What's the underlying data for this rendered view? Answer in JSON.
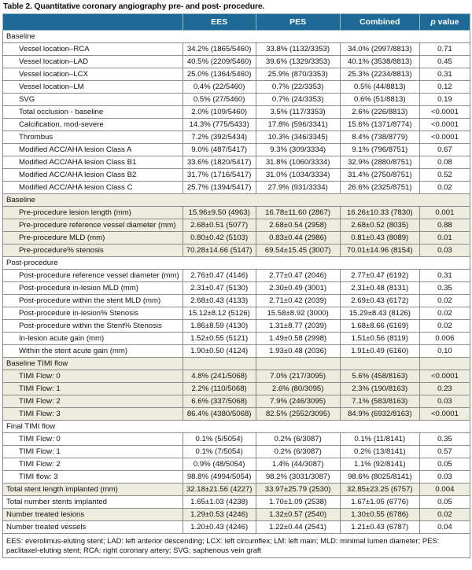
{
  "title": "Table 2. Quantitative coronary angiography pre- and post- procedure.",
  "headers": {
    "label": "",
    "ees": "EES",
    "pes": "PES",
    "combined": "Combined",
    "p_italic": "p",
    "p_rest": " value"
  },
  "sections": [
    {
      "title": "Baseline",
      "shaded": false,
      "full": true,
      "rows": [
        {
          "label": "Vessel location–RCA",
          "ees": "34.2% (1865/5460)",
          "pes": "33.8% (1132/3353)",
          "combined": "34.0% (2997/8813)",
          "p": "0.71"
        },
        {
          "label": "Vessel location–LAD",
          "ees": "40.5% (2209/5460)",
          "pes": "39.6% (1329/3353)",
          "combined": "40.1% (3538/8813)",
          "p": "0.45"
        },
        {
          "label": "Vessel location–LCX",
          "ees": "25.0% (1364/5460)",
          "pes": "25.9% (870/3353)",
          "combined": "25.3% (2234/8813)",
          "p": "0.31"
        },
        {
          "label": "Vessel location–LM",
          "ees": "0.4% (22/5460)",
          "pes": "0.7% (22/3353)",
          "combined": "0.5% (44/8813)",
          "p": "0.12"
        },
        {
          "label": "SVG",
          "ees": "0.5% (27/5460)",
          "pes": "0.7% (24/3353)",
          "combined": "0.6% (51/8813)",
          "p": "0.19"
        },
        {
          "label": "Total occlusion - baseline",
          "ees": "2.0% (109/5460)",
          "pes": "3.5% (117/3353)",
          "combined": "2.6% (226/8813)",
          "p": "<0.0001"
        },
        {
          "label": "Calcification, mod-severe",
          "ees": "14.3% (775/5433)",
          "pes": "17.8% (596/3341)",
          "combined": "15.6% (1371/8774)",
          "p": "<0.0001"
        },
        {
          "label": "Thrombus",
          "ees": "7.2% (392/5434)",
          "pes": "10.3% (346/3345)",
          "combined": "8.4% (738/8779)",
          "p": "<0.0001"
        },
        {
          "label": "Modified ACC/AHA lesion Class A",
          "ees": "9.0% (487/5417)",
          "pes": "9.3% (309/3334)",
          "combined": "9.1% (796/8751)",
          "p": "0.67"
        },
        {
          "label": "Modified ACC/AHA lesion Class B1",
          "ees": "33.6% (1820/5417)",
          "pes": "31.8% (1060/3334)",
          "combined": "32.9% (2880/8751)",
          "p": "0.08"
        },
        {
          "label": "Modified ACC/AHA lesion Class B2",
          "ees": "31.7% (1716/5417)",
          "pes": "31.0% (1034/3334)",
          "combined": "31.4% (2750/8751)",
          "p": "0.52"
        },
        {
          "label": "Modified ACC/AHA lesion Class C",
          "ees": "25.7% (1394/5417)",
          "pes": "27.9% (931/3334)",
          "combined": "26.6% (2325/8751)",
          "p": "0.02"
        }
      ]
    },
    {
      "title": "Baseline",
      "shaded": true,
      "full": true,
      "rows": [
        {
          "label": "Pre-procedure lesion length (mm)",
          "ees": "15.96±9.50 (4963)",
          "pes": "16.78±11.60 (2867)",
          "combined": "16.26±10.33 (7830)",
          "p": "0.001"
        },
        {
          "label": "Pre-procedure reference vessel diameter (mm)",
          "ees": "2.68±0.51 (5077)",
          "pes": "2.68±0.54 (2958)",
          "combined": "2.68±0.52 (8035)",
          "p": "0.88"
        },
        {
          "label": "Pre-procedure MLD (mm)",
          "ees": "0.80±0.42 (5103)",
          "pes": "0.83±0.44 (2986)",
          "combined": "0.81±0.43 (8089)",
          "p": "0.01"
        },
        {
          "label": "Pre-procedure% stenosis",
          "ees": "70.28±14.66 (5147)",
          "pes": "69.54±15.45 (3007)",
          "combined": "70.01±14.96 (8154)",
          "p": "0.03"
        }
      ]
    },
    {
      "title": "Post-procedure",
      "shaded": false,
      "full": true,
      "rows": [
        {
          "label": "Post-procedure reference vessel diameter (mm)",
          "ees": "2.76±0.47 (4146)",
          "pes": "2.77±0.47 (2046)",
          "combined": "2.77±0.47 (6192)",
          "p": "0.31"
        },
        {
          "label": "Post-procedure in-lesion MLD (mm)",
          "ees": "2.31±0.47 (5130)",
          "pes": "2.30±0.49 (3001)",
          "combined": "2.31±0.48 (8131)",
          "p": "0.35"
        },
        {
          "label": "Post-procedure within the stent MLD (mm)",
          "ees": "2.68±0.43 (4133)",
          "pes": "2.71±0.42 (2039)",
          "combined": "2.69±0.43 (6172)",
          "p": "0.02"
        },
        {
          "label": "Post-procedure in-lesion% Stenosis",
          "ees": "15.12±8.12 (5126)",
          "pes": "15.58±8.92 (3000)",
          "combined": "15.29±8.43 (8126)",
          "p": "0.02"
        },
        {
          "label": "Post-procedure within the Stent% Stenosis",
          "ees": "1.86±8.59 (4130)",
          "pes": "1.31±8.77 (2039)",
          "combined": "1.68±8.66 (6169)",
          "p": "0.02"
        },
        {
          "label": "In-lesion acute gain (mm)",
          "ees": "1.52±0.55 (5121)",
          "pes": "1.49±0.58 (2998)",
          "combined": "1.51±0.56 (8119)",
          "p": "0.006"
        },
        {
          "label": "Within the stent acute gain (mm)",
          "ees": "1.90±0.50 (4124)",
          "pes": "1.93±0.48 (2036)",
          "combined": "1.91±0.49 (6160)",
          "p": "0.10"
        }
      ]
    },
    {
      "title": "Baseline TIMI flow",
      "shaded": true,
      "full": false,
      "rows": [
        {
          "label": "TIMI Flow: 0",
          "ees": "4.8% (241/5068)",
          "pes": "7.0% (217/3095)",
          "combined": "5.6% (458/8163)",
          "p": "<0.0001"
        },
        {
          "label": "TIMI Flow: 1",
          "ees": "2.2% (110/5068)",
          "pes": "2.6% (80/3095)",
          "combined": "2.3% (190/8163)",
          "p": "0.23"
        },
        {
          "label": "TIMI Flow: 2",
          "ees": "6.6% (337/5068)",
          "pes": "7.9% (246/3095)",
          "combined": "7.1% (583/8163)",
          "p": "0.03"
        },
        {
          "label": "TIMI Flow: 3",
          "ees": "86.4% (4380/5068)",
          "pes": "82.5% (2552/3095)",
          "combined": "84.9% (6932/8163)",
          "p": "<0.0001"
        }
      ]
    },
    {
      "title": "Final TIMI flow",
      "shaded": false,
      "full": true,
      "rows": [
        {
          "label": "TIMI Flow: 0",
          "ees": "0.1% (5/5054)",
          "pes": "0.2% (6/3087)",
          "combined": "0.1% (11/8141)",
          "p": "0.35"
        },
        {
          "label": "TIMI Flow: 1",
          "ees": "0.1% (7/5054)",
          "pes": "0.2% (6/3087)",
          "combined": "0.2% (13/8141)",
          "p": "0.57"
        },
        {
          "label": "TIMI Flow: 2",
          "ees": "0.9% (48/5054)",
          "pes": "1.4% (44/3087)",
          "combined": "1.1% (92/8141)",
          "p": "0.05"
        },
        {
          "label": "TIMI flow: 3",
          "ees": "98.8% (4994/5054)",
          "pes": "98.2% (3031/3087)",
          "combined": "98.6% (8025/8141)",
          "p": "0.03"
        }
      ]
    }
  ],
  "totals": [
    {
      "label": "Total stent length implanted (mm)",
      "ees": "32.18±21.56 (4227)",
      "pes": "33.97±25.79 (2530)",
      "combined": "32.85±23.25 (6757)",
      "p": "0.004",
      "shaded": true
    },
    {
      "label": "Total number stents implanted",
      "ees": "1.65±1.03 (4238)",
      "pes": "1.70±1.09 (2538)",
      "combined": "1.67±1.05 (6776)",
      "p": "0.05",
      "shaded": false
    },
    {
      "label": "Number treated lesions",
      "ees": "1.29±0.53 (4246)",
      "pes": "1.32±0.57 (2540)",
      "combined": "1.30±0.55 (6786)",
      "p": "0.02",
      "shaded": true
    },
    {
      "label": "Number treated vessels",
      "ees": "1.20±0.43 (4246)",
      "pes": "1.22±0.44 (2541)",
      "combined": "1.21±0.43 (6787)",
      "p": "0.04",
      "shaded": false
    }
  ],
  "footnote": "EES: everolimus-eluting stent; LAD: left anterior descending; LCX: left circumflex; LM: left main; MLD: minimal lumen diameter; PES: paclitaxel-eluting stent; RCA: right coronary artery; SVG; saphenous vein graft"
}
